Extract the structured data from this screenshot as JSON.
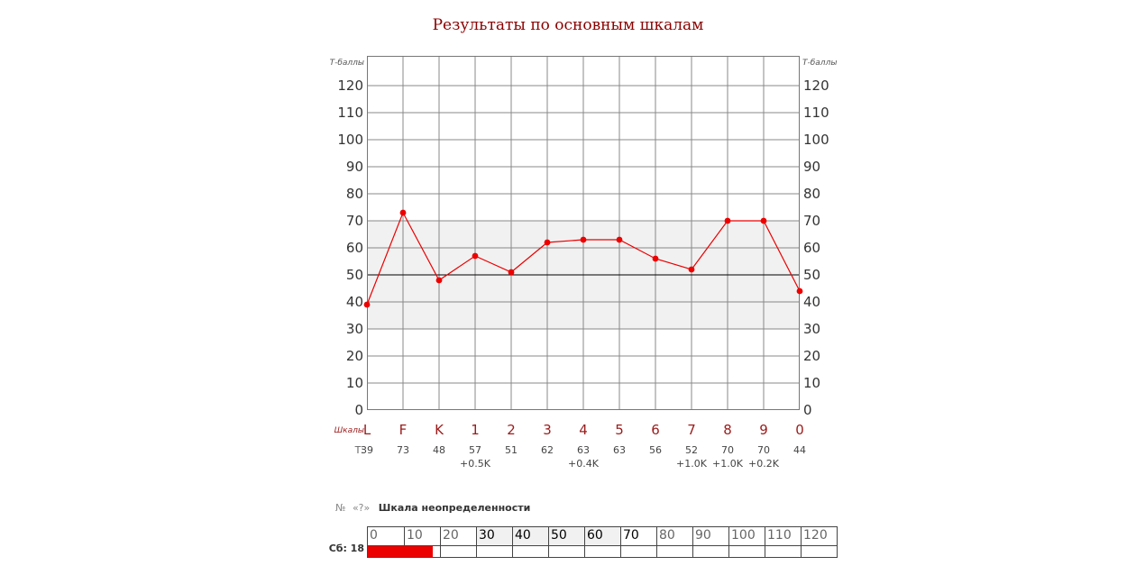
{
  "title": "Результаты по основным шкалам",
  "chart_data": {
    "type": "line",
    "title": "Результаты по основным шкалам",
    "ylabel_left": "Т-баллы",
    "ylabel_right": "Т-баллы",
    "categories": [
      "L",
      "F",
      "K",
      "1",
      "2",
      "3",
      "4",
      "5",
      "6",
      "7",
      "8",
      "9",
      "0"
    ],
    "values": [
      39,
      73,
      48,
      57,
      51,
      62,
      63,
      63,
      56,
      52,
      70,
      70,
      44
    ],
    "corrections": {
      "1": "+0.5K",
      "4": "+0.4K",
      "7": "+1.0K",
      "8": "+1.0K",
      "9": "+0.2K"
    },
    "ylim": [
      0,
      131
    ],
    "yticks": [
      0,
      10,
      20,
      30,
      40,
      50,
      60,
      70,
      80,
      90,
      100,
      110,
      120
    ],
    "normal_band": [
      30,
      70
    ],
    "midline": 50,
    "grid": true,
    "line_color": "#ec0000",
    "band_color": "#f1f1f1",
    "grid_color": "#888888",
    "midline_color": "#000000"
  },
  "captions": {
    "scales_row": "Шкалы",
    "t_row": "Т:"
  },
  "uncertainty": {
    "number_sign": "№",
    "code": "«?»",
    "name": "Шкала неопределенности",
    "raw_label": "Сб:",
    "raw_score": 18,
    "ticks": [
      0,
      10,
      20,
      30,
      40,
      50,
      60,
      70,
      80,
      90,
      100,
      110,
      120
    ],
    "shaded_ticks": [
      30,
      40,
      50,
      60
    ],
    "dark_ticks": [
      30,
      40,
      50,
      60,
      70
    ],
    "bar_color": "#ec0000",
    "shade_color": "#f1f1f1"
  },
  "colors": {
    "title_red": "#8b0000",
    "scale_label_red": "#9b1b1b",
    "profile_red": "#ec0000",
    "band_gray": "#f1f1f1",
    "grid_gray": "#888888",
    "tick_text": "#333333"
  }
}
